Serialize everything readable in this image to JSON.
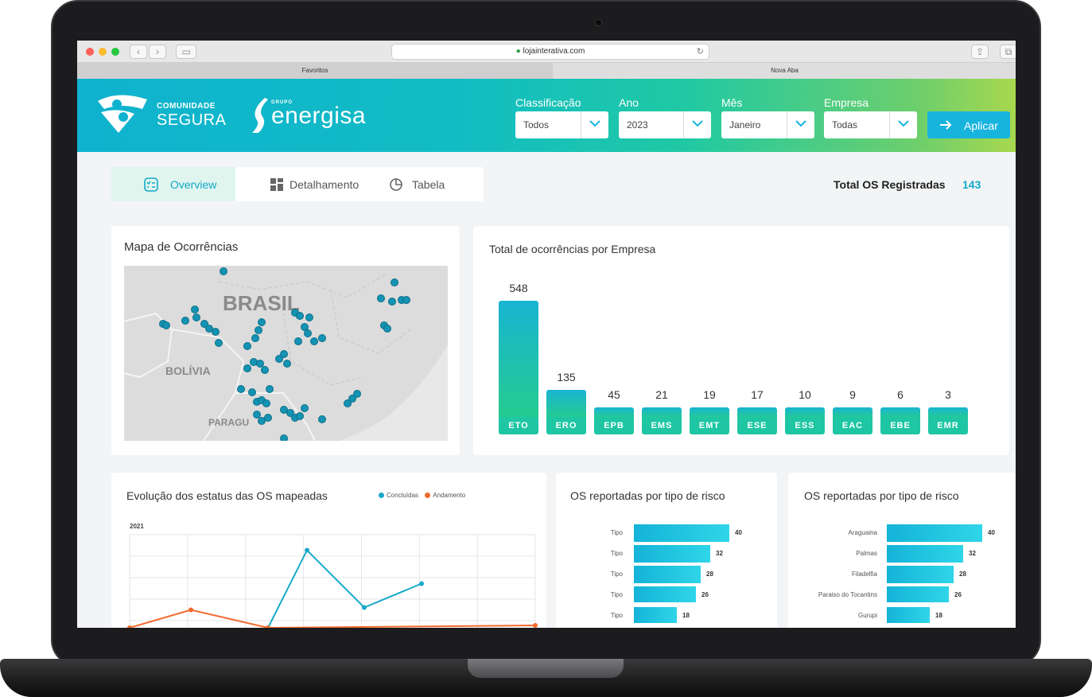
{
  "browser": {
    "url": "lojainterativa.com",
    "tabs": [
      "Favoritos",
      "Nova Aba"
    ]
  },
  "brand": {
    "logo1_small": "COMUNIDADE",
    "logo1_big": "SEGURA",
    "logo2_small": "GRUPO",
    "logo2_big": "energisa"
  },
  "filters": [
    {
      "label": "Classificação",
      "value": "Todos"
    },
    {
      "label": "Ano",
      "value": "2023"
    },
    {
      "label": "Mês",
      "value": "Janeiro"
    },
    {
      "label": "Empresa",
      "value": "Todas"
    }
  ],
  "apply_label": "Aplicar",
  "tabs": [
    "Overview",
    "Detalhamento",
    "Tabela"
  ],
  "total": {
    "label": "Total OS Registradas",
    "value": "143"
  },
  "map_card": {
    "title": "Mapa de Ocorrências",
    "labels": [
      "BRASIL",
      "BOLÍVIA",
      "PARAGU"
    ]
  },
  "company_chart": {
    "title": "Total de ocorrências por Empresa",
    "chart_data": {
      "type": "bar",
      "categories": [
        "ETO",
        "ERO",
        "EPB",
        "EMS",
        "EMT",
        "ESE",
        "ESS",
        "EAC",
        "EBE",
        "EMR"
      ],
      "values": [
        548,
        135,
        45,
        21,
        19,
        17,
        10,
        9,
        6,
        3
      ]
    }
  },
  "status_chart": {
    "title": "Evolução dos estatus das OS mapeadas",
    "legend": [
      "Concluídas",
      "Andamento"
    ],
    "colors": [
      "#1aa9c9",
      "#f26a2e"
    ],
    "year_label": "2021",
    "chart_data": {
      "type": "line",
      "x": [
        1,
        2,
        3,
        4,
        5,
        6,
        7,
        8
      ],
      "series": [
        {
          "name": "Concluídas",
          "values": [
            null,
            null,
            0,
            65,
            17,
            37,
            null,
            null
          ]
        },
        {
          "name": "Andamento",
          "values": [
            0,
            15,
            0,
            null,
            null,
            null,
            null,
            2
          ]
        }
      ]
    }
  },
  "risk_chart_1": {
    "title": "OS reportadas por tipo de risco",
    "chart_data": {
      "type": "bar",
      "categories": [
        "Tipo",
        "Tipo",
        "Tipo",
        "Tipo",
        "Tipo"
      ],
      "values": [
        40,
        32,
        28,
        26,
        18
      ]
    }
  },
  "risk_chart_2": {
    "title": "OS reportadas por tipo de risco",
    "chart_data": {
      "type": "bar",
      "categories": [
        "Araguaina",
        "Palmas",
        "Filadelfia",
        "Paraiso do Tocantins",
        "Gurupi"
      ],
      "values": [
        40,
        32,
        28,
        26,
        18
      ]
    }
  }
}
